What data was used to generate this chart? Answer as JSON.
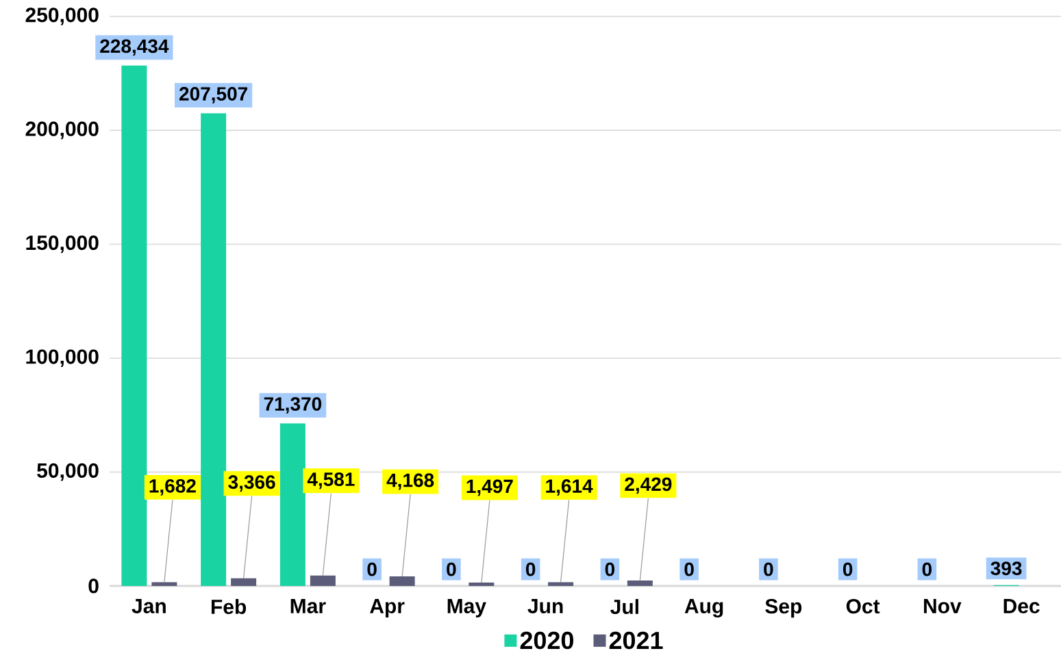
{
  "chart_data": {
    "type": "bar",
    "categories": [
      "Jan",
      "Feb",
      "Mar",
      "Apr",
      "May",
      "Jun",
      "Jul",
      "Aug",
      "Sep",
      "Oct",
      "Nov",
      "Dec"
    ],
    "series": [
      {
        "name": "2020",
        "color": "#19d3a2",
        "values": [
          228434,
          207507,
          71370,
          0,
          0,
          0,
          0,
          0,
          0,
          0,
          0,
          393
        ],
        "value_labels": [
          "228,434",
          "207,507",
          "71,370",
          "0",
          "0",
          "0",
          "0",
          "0",
          "0",
          "0",
          "0",
          "393"
        ]
      },
      {
        "name": "2021",
        "color": "#5b5b7a",
        "values": [
          1682,
          3366,
          4581,
          4168,
          1497,
          1614,
          2429,
          null,
          null,
          null,
          null,
          null
        ],
        "value_labels": [
          "1,682",
          "3,366",
          "4,581",
          "4,168",
          "1,497",
          "1,614",
          "2,429",
          null,
          null,
          null,
          null,
          null
        ]
      }
    ],
    "ylim": [
      0,
      250000
    ],
    "yticks": [
      0,
      {
        "value": 50000,
        "label": "50,000"
      },
      {
        "value": 100000,
        "label": "100,000"
      },
      {
        "value": 150000,
        "label": "150,000"
      },
      {
        "value": 200000,
        "label": "200,000"
      },
      {
        "value": 250000,
        "label": "250,000"
      }
    ],
    "grid": "y",
    "legend": "bottom"
  }
}
